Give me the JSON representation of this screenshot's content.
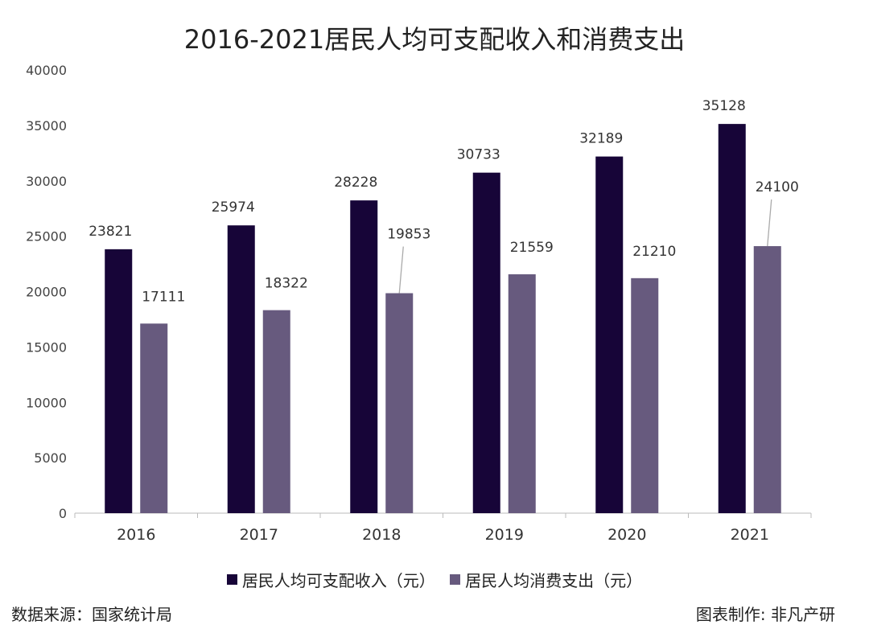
{
  "chart_data": {
    "type": "bar",
    "title": "2016-2021居民人均可支配收入和消费支出",
    "categories": [
      "2016",
      "2017",
      "2018",
      "2019",
      "2020",
      "2021"
    ],
    "series": [
      {
        "name": "居民人均可支配收入（元）",
        "color": "#170538",
        "values": [
          23821,
          25974,
          28228,
          30733,
          32189,
          35128
        ]
      },
      {
        "name": "居民人均消费支出（元）",
        "color": "#675a7e",
        "values": [
          17111,
          18322,
          19853,
          21559,
          21210,
          24100
        ]
      }
    ],
    "ylim": [
      0,
      40000
    ],
    "yticks": [
      0,
      5000,
      10000,
      15000,
      20000,
      25000,
      30000,
      35000,
      40000
    ],
    "xlabel": "",
    "ylabel": "",
    "grid": false,
    "legend": "bottom",
    "data_labels": true
  },
  "footer": {
    "source": "数据来源：国家统计局",
    "credit": "图表制作: 非凡产研"
  }
}
